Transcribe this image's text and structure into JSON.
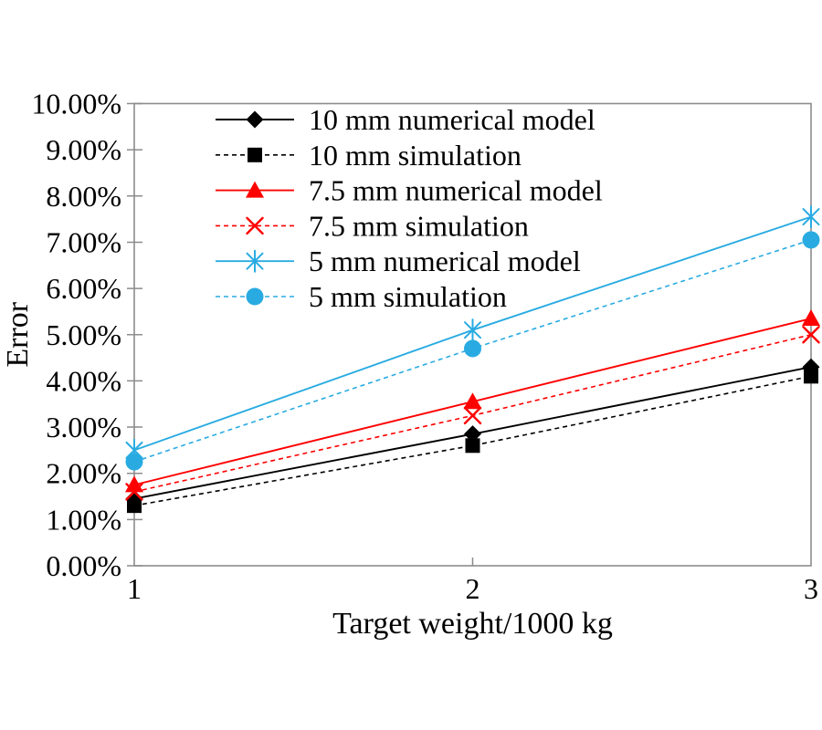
{
  "figure": {
    "background_color": "#ffffff",
    "axis_frame_color": "#8c8c8c",
    "text_color": "#000000"
  },
  "chart_data": {
    "type": "line",
    "title": "",
    "xlabel": "Target weight/1000 kg",
    "ylabel": "Error",
    "x": [
      1,
      2,
      3
    ],
    "x_tick_labels": [
      "1",
      "2",
      "3"
    ],
    "ylim": [
      0,
      10
    ],
    "y_tick_step": 1,
    "y_tick_labels": [
      "0.00%",
      "1.00%",
      "2.00%",
      "3.00%",
      "4.00%",
      "5.00%",
      "6.00%",
      "7.00%",
      "8.00%",
      "9.00%",
      "10.00%"
    ],
    "grid": false,
    "legend_position": "top-left-inside",
    "series": [
      {
        "name": "10 mm numerical model",
        "color": "#000000",
        "line_style": "solid",
        "marker": "diamond",
        "values": [
          1.45,
          2.85,
          4.3
        ]
      },
      {
        "name": "10 mm simulation",
        "color": "#000000",
        "line_style": "dashed",
        "marker": "square",
        "values": [
          1.3,
          2.6,
          4.1
        ]
      },
      {
        "name": "7.5 mm numerical model",
        "color": "#ff0000",
        "line_style": "solid",
        "marker": "triangle",
        "values": [
          1.75,
          3.55,
          5.35
        ]
      },
      {
        "name": "7.5 mm simulation",
        "color": "#ff0000",
        "line_style": "dashed",
        "marker": "x",
        "values": [
          1.6,
          3.25,
          5.0
        ]
      },
      {
        "name": "5 mm numerical model",
        "color": "#29abe2",
        "line_style": "solid",
        "marker": "asterisk",
        "values": [
          2.5,
          5.1,
          7.55
        ]
      },
      {
        "name": "5 mm simulation",
        "color": "#29abe2",
        "line_style": "dashed",
        "marker": "circle",
        "values": [
          2.25,
          4.7,
          7.05
        ]
      }
    ]
  }
}
